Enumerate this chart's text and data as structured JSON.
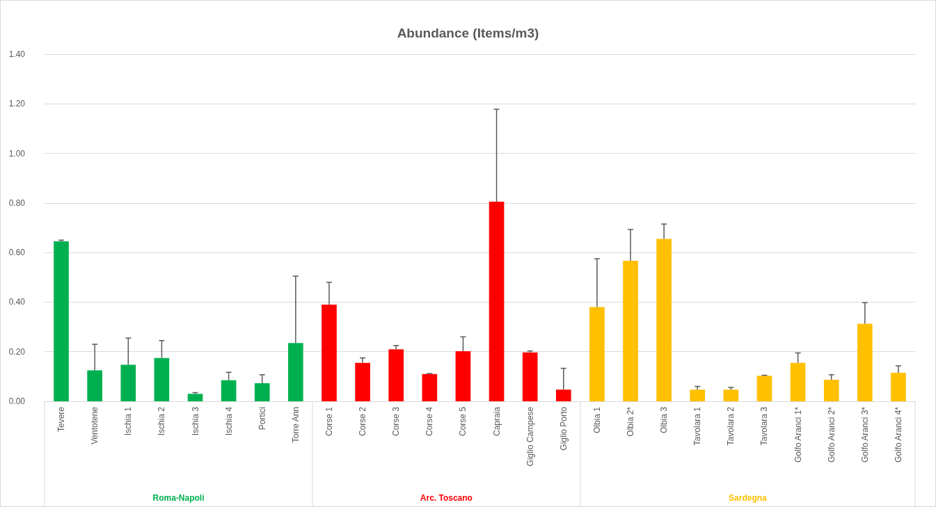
{
  "chart_data": {
    "type": "bar",
    "title": "Abundance (Items/m3)",
    "categories": [
      "Tevere",
      "Ventotene",
      "Ischia 1",
      "Ischia 2",
      "Ischia 3",
      "Ischia 4",
      "Portici",
      "Torre Ann",
      "Corse 1",
      "Corse 2",
      "Corse 3",
      "Corse 4",
      "Corse 5",
      "Capraia",
      "Giglio Campese",
      "Giglio Porto",
      "Olbia 1",
      "Olbia 2*",
      "Olbia 3",
      "Tavolara 1",
      "Tavolara 2",
      "Tavolara 3",
      "Golfo Aranci 1*",
      "Golfo Aranci 2*",
      "Golfo Aranci 3*",
      "Golfo Aranci 4*"
    ],
    "stacked": true,
    "series": [
      {
        "name": "Roma-Napoli",
        "color": "#00b050",
        "values": [
          0.645,
          0.125,
          0.147,
          0.175,
          0.03,
          0.085,
          0.073,
          0.235,
          null,
          null,
          null,
          null,
          null,
          null,
          null,
          null,
          null,
          null,
          null,
          null,
          null,
          null,
          null,
          null,
          null,
          null
        ],
        "errors": [
          [
            0.645,
            0.65
          ],
          [
            0.125,
            0.23
          ],
          [
            0.147,
            0.255
          ],
          [
            0.175,
            0.245
          ],
          [
            0.03,
            0.035
          ],
          [
            0.085,
            0.117
          ],
          [
            0.073,
            0.107
          ],
          [
            0.235,
            0.505
          ],
          null,
          null,
          null,
          null,
          null,
          null,
          null,
          null,
          null,
          null,
          null,
          null,
          null,
          null,
          null,
          null,
          null,
          null
        ]
      },
      {
        "name": "Arc. Toscano",
        "color": "#ff0000",
        "values": [
          null,
          null,
          null,
          null,
          null,
          null,
          null,
          null,
          0.39,
          0.155,
          0.21,
          0.11,
          0.202,
          0.805,
          0.197,
          0.047,
          null,
          null,
          null,
          null,
          null,
          null,
          null,
          null,
          null,
          null
        ],
        "errors": [
          null,
          null,
          null,
          null,
          null,
          null,
          null,
          null,
          [
            0.39,
            0.48
          ],
          [
            0.155,
            0.175
          ],
          [
            0.21,
            0.225
          ],
          [
            0.11,
            0.112
          ],
          [
            0.202,
            0.26
          ],
          [
            0.805,
            1.178
          ],
          [
            0.197,
            0.203
          ],
          [
            0.047,
            0.133
          ],
          null,
          null,
          null,
          null,
          null,
          null,
          null,
          null,
          null,
          null
        ]
      },
      {
        "name": "Sardegna",
        "color": "#ffc000",
        "values": [
          null,
          null,
          null,
          null,
          null,
          null,
          null,
          null,
          null,
          null,
          null,
          null,
          null,
          null,
          null,
          null,
          0.38,
          0.567,
          0.655,
          0.047,
          0.047,
          0.103,
          0.155,
          0.087,
          0.313,
          0.115
        ],
        "errors": [
          null,
          null,
          null,
          null,
          null,
          null,
          null,
          null,
          null,
          null,
          null,
          null,
          null,
          null,
          null,
          null,
          [
            0.38,
            0.575
          ],
          [
            0.567,
            0.693
          ],
          [
            0.655,
            0.715
          ],
          [
            0.047,
            0.06
          ],
          [
            0.047,
            0.056
          ],
          [
            0.103,
            0.105
          ],
          [
            0.155,
            0.195
          ],
          [
            0.087,
            0.107
          ],
          [
            0.313,
            0.398
          ],
          [
            0.115,
            0.143
          ]
        ]
      }
    ],
    "ylim": [
      0,
      1.4
    ],
    "yticks": [
      {
        "value": 0,
        "label": "0.00"
      },
      {
        "value": 0.2,
        "label": "0.20"
      },
      {
        "value": 0.4,
        "label": "0.40"
      },
      {
        "value": 0.6,
        "label": "0.60"
      },
      {
        "value": 0.8,
        "label": "0.80"
      },
      {
        "value": 1,
        "label": "1.00"
      },
      {
        "value": 1.2,
        "label": "1.20"
      },
      {
        "value": 1.4,
        "label": "1.40"
      }
    ],
    "grid": "y",
    "legend": false
  }
}
